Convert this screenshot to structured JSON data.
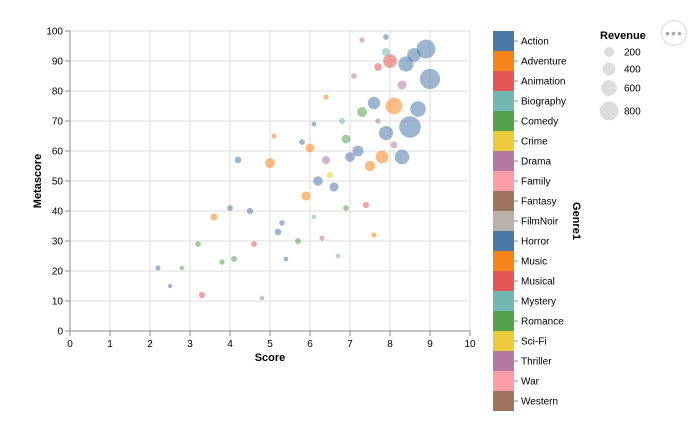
{
  "chart_data": {
    "type": "scatter",
    "title": "",
    "xlabel": "Score",
    "ylabel": "Metascore",
    "xlim": [
      0,
      10
    ],
    "ylim": [
      0,
      100
    ],
    "x_ticks": [
      "0",
      "1",
      "2",
      "3",
      "4",
      "5",
      "6",
      "7",
      "8",
      "9",
      "10"
    ],
    "y_ticks": [
      "0",
      "10",
      "20",
      "30",
      "40",
      "50",
      "60",
      "70",
      "80",
      "90",
      "100"
    ],
    "grid": true,
    "color_legend": {
      "title": "Genre1",
      "placement": "right",
      "entries": [
        {
          "name": "Action",
          "color": "#4c78a8"
        },
        {
          "name": "Adventure",
          "color": "#f58518"
        },
        {
          "name": "Animation",
          "color": "#e45756"
        },
        {
          "name": "Biography",
          "color": "#72b7b2"
        },
        {
          "name": "Comedy",
          "color": "#54a24b"
        },
        {
          "name": "Crime",
          "color": "#eeca3b"
        },
        {
          "name": "Drama",
          "color": "#b279a2"
        },
        {
          "name": "Family",
          "color": "#ff9da6"
        },
        {
          "name": "Fantasy",
          "color": "#9d755d"
        },
        {
          "name": "FilmNoir",
          "color": "#bab0ac"
        },
        {
          "name": "Horror",
          "color": "#4c78a8"
        },
        {
          "name": "Music",
          "color": "#f58518"
        },
        {
          "name": "Musical",
          "color": "#e45756"
        },
        {
          "name": "Mystery",
          "color": "#72b7b2"
        },
        {
          "name": "Romance",
          "color": "#54a24b"
        },
        {
          "name": "Sci-Fi",
          "color": "#eeca3b"
        },
        {
          "name": "Thriller",
          "color": "#b279a2"
        },
        {
          "name": "War",
          "color": "#ff9da6"
        },
        {
          "name": "Western",
          "color": "#9d755d"
        }
      ]
    },
    "size_legend": {
      "title": "Revenue",
      "placement": "top-right",
      "entries": [
        {
          "label": "200",
          "value": 200
        },
        {
          "label": "400",
          "value": 400
        },
        {
          "label": "600",
          "value": 600
        },
        {
          "label": "800",
          "value": 800
        }
      ]
    },
    "series": [
      {
        "points": [
          {
            "x": 8.9,
            "y": 94,
            "genre": "Action",
            "revenue": 600
          },
          {
            "x": 9.0,
            "y": 84,
            "genre": "Action",
            "revenue": 700
          },
          {
            "x": 8.5,
            "y": 68,
            "genre": "Action",
            "revenue": 800
          },
          {
            "x": 8.7,
            "y": 74,
            "genre": "Action",
            "revenue": 400
          },
          {
            "x": 8.3,
            "y": 58,
            "genre": "Action",
            "revenue": 350
          },
          {
            "x": 8.4,
            "y": 89,
            "genre": "Action",
            "revenue": 380
          },
          {
            "x": 8.1,
            "y": 75,
            "genre": "Adventure",
            "revenue": 450
          },
          {
            "x": 7.9,
            "y": 66,
            "genre": "Action",
            "revenue": 320
          },
          {
            "x": 8.0,
            "y": 90,
            "genre": "Animation",
            "revenue": 300
          },
          {
            "x": 8.6,
            "y": 92,
            "genre": "Action",
            "revenue": 300
          },
          {
            "x": 7.8,
            "y": 58,
            "genre": "Adventure",
            "revenue": 260
          },
          {
            "x": 7.6,
            "y": 76,
            "genre": "Action",
            "revenue": 240
          },
          {
            "x": 7.3,
            "y": 73,
            "genre": "Comedy",
            "revenue": 150
          },
          {
            "x": 7.2,
            "y": 60,
            "genre": "Action",
            "revenue": 180
          },
          {
            "x": 7.5,
            "y": 55,
            "genre": "Adventure",
            "revenue": 160
          },
          {
            "x": 7.0,
            "y": 58,
            "genre": "Action",
            "revenue": 140
          },
          {
            "x": 6.9,
            "y": 64,
            "genre": "Comedy",
            "revenue": 110
          },
          {
            "x": 6.6,
            "y": 48,
            "genre": "Action",
            "revenue": 120
          },
          {
            "x": 6.4,
            "y": 57,
            "genre": "Drama",
            "revenue": 90
          },
          {
            "x": 6.2,
            "y": 50,
            "genre": "Action",
            "revenue": 130
          },
          {
            "x": 5.9,
            "y": 45,
            "genre": "Adventure",
            "revenue": 120
          },
          {
            "x": 6.5,
            "y": 52,
            "genre": "Crime",
            "revenue": 60
          },
          {
            "x": 6.8,
            "y": 70,
            "genre": "Biography",
            "revenue": 50
          },
          {
            "x": 7.1,
            "y": 85,
            "genre": "Drama",
            "revenue": 40
          },
          {
            "x": 7.7,
            "y": 88,
            "genre": "Animation",
            "revenue": 80
          },
          {
            "x": 5.0,
            "y": 56,
            "genre": "Adventure",
            "revenue": 150
          },
          {
            "x": 6.0,
            "y": 61,
            "genre": "Adventure",
            "revenue": 110
          },
          {
            "x": 4.2,
            "y": 57,
            "genre": "Action",
            "revenue": 60
          },
          {
            "x": 4.5,
            "y": 40,
            "genre": "Action",
            "revenue": 50
          },
          {
            "x": 4.0,
            "y": 41,
            "genre": "Horror",
            "revenue": 40
          },
          {
            "x": 3.6,
            "y": 38,
            "genre": "Adventure",
            "revenue": 70
          },
          {
            "x": 3.2,
            "y": 29,
            "genre": "Comedy",
            "revenue": 40
          },
          {
            "x": 3.8,
            "y": 23,
            "genre": "Comedy",
            "revenue": 35
          },
          {
            "x": 3.3,
            "y": 12,
            "genre": "Animation",
            "revenue": 50
          },
          {
            "x": 2.8,
            "y": 21,
            "genre": "Comedy",
            "revenue": 20
          },
          {
            "x": 2.2,
            "y": 21,
            "genre": "Action",
            "revenue": 30
          },
          {
            "x": 2.5,
            "y": 15,
            "genre": "Horror",
            "revenue": 20
          },
          {
            "x": 4.1,
            "y": 24,
            "genre": "Romance",
            "revenue": 45
          },
          {
            "x": 4.6,
            "y": 29,
            "genre": "Animation",
            "revenue": 40
          },
          {
            "x": 4.8,
            "y": 11,
            "genre": "Drama",
            "revenue": 20
          },
          {
            "x": 5.4,
            "y": 24,
            "genre": "Horror",
            "revenue": 25
          },
          {
            "x": 5.2,
            "y": 33,
            "genre": "Action",
            "revenue": 60
          },
          {
            "x": 5.7,
            "y": 30,
            "genre": "Comedy",
            "revenue": 45
          },
          {
            "x": 6.3,
            "y": 31,
            "genre": "Drama",
            "revenue": 30
          },
          {
            "x": 5.3,
            "y": 36,
            "genre": "Horror",
            "revenue": 35
          },
          {
            "x": 5.8,
            "y": 63,
            "genre": "Horror",
            "revenue": 40
          },
          {
            "x": 5.1,
            "y": 65,
            "genre": "Adventure",
            "revenue": 30
          },
          {
            "x": 7.4,
            "y": 42,
            "genre": "Animation",
            "revenue": 50
          },
          {
            "x": 7.6,
            "y": 32,
            "genre": "Music",
            "revenue": 30
          },
          {
            "x": 7.3,
            "y": 97,
            "genre": "Drama",
            "revenue": 30
          },
          {
            "x": 8.3,
            "y": 82,
            "genre": "Drama",
            "revenue": 120
          },
          {
            "x": 7.9,
            "y": 93,
            "genre": "Biography",
            "revenue": 90
          },
          {
            "x": 6.1,
            "y": 38,
            "genre": "Biography",
            "revenue": 25
          },
          {
            "x": 6.7,
            "y": 25,
            "genre": "Mystery",
            "revenue": 25
          },
          {
            "x": 6.4,
            "y": 78,
            "genre": "Adventure",
            "revenue": 30
          },
          {
            "x": 6.1,
            "y": 69,
            "genre": "Action",
            "revenue": 25
          },
          {
            "x": 7.7,
            "y": 70,
            "genre": "Drama",
            "revenue": 35
          },
          {
            "x": 7.9,
            "y": 98,
            "genre": "Action",
            "revenue": 40
          },
          {
            "x": 8.1,
            "y": 62,
            "genre": "Drama",
            "revenue": 60
          },
          {
            "x": 6.9,
            "y": 41,
            "genre": "Comedy",
            "revenue": 40
          }
        ]
      }
    ]
  }
}
